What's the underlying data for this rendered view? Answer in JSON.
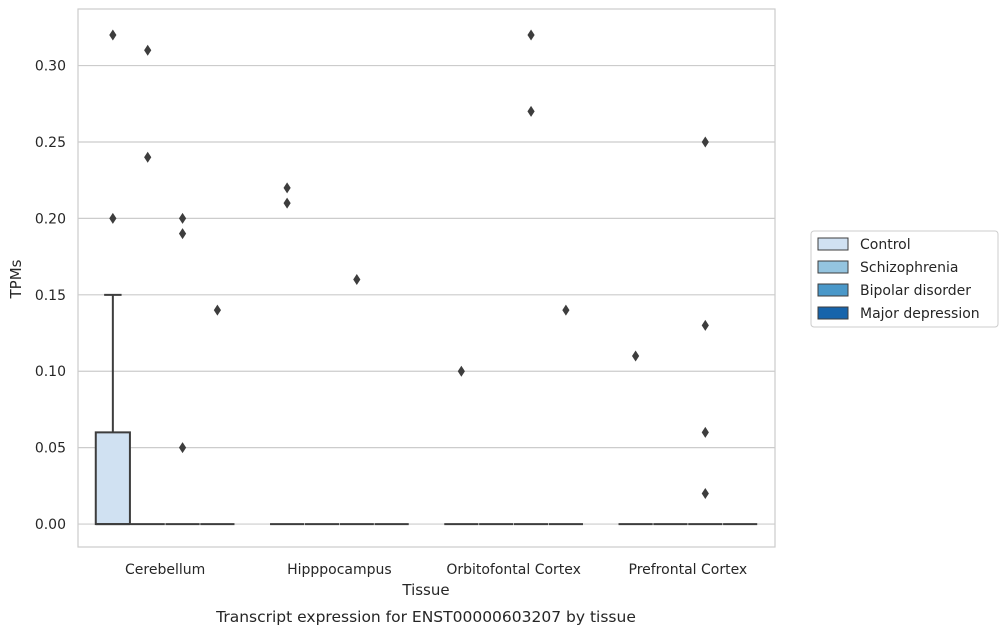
{
  "chart_data": {
    "type": "box",
    "xlabel": "Tissue",
    "ylabel": "TPMs",
    "caption": "Transcript expression for ENST00000603207 by tissue",
    "ylim": [
      -0.015,
      0.337
    ],
    "yticks": [
      0.0,
      0.05,
      0.1,
      0.15,
      0.2,
      0.25,
      0.3
    ],
    "ytick_labels": [
      "0.00",
      "0.05",
      "0.10",
      "0.15",
      "0.20",
      "0.25",
      "0.30"
    ],
    "grid": "horizontal",
    "legend_position": "right",
    "categories": [
      "Cerebellum",
      "Hipppocampus",
      "Orbitofontal Cortex",
      "Prefrontal Cortex"
    ],
    "series": [
      {
        "name": "Control",
        "color": "#d0e1f2",
        "boxes": [
          {
            "q1": 0.0,
            "median": 0.0,
            "q3": 0.06,
            "whisker_low": 0.0,
            "whisker_high": 0.15,
            "outliers": [
              0.2,
              0.32
            ]
          },
          {
            "q1": 0.0,
            "median": 0.0,
            "q3": 0.0,
            "whisker_low": 0.0,
            "whisker_high": 0.0,
            "outliers": [
              0.21,
              0.22
            ]
          },
          {
            "q1": 0.0,
            "median": 0.0,
            "q3": 0.0,
            "whisker_low": 0.0,
            "whisker_high": 0.0,
            "outliers": [
              0.1
            ]
          },
          {
            "q1": 0.0,
            "median": 0.0,
            "q3": 0.0,
            "whisker_low": 0.0,
            "whisker_high": 0.0,
            "outliers": [
              0.11
            ]
          }
        ]
      },
      {
        "name": "Schizophrenia",
        "color": "#94c4df",
        "boxes": [
          {
            "q1": 0.0,
            "median": 0.0,
            "q3": 0.0,
            "whisker_low": 0.0,
            "whisker_high": 0.0,
            "outliers": [
              0.24,
              0.31
            ]
          },
          {
            "q1": 0.0,
            "median": 0.0,
            "q3": 0.0,
            "whisker_low": 0.0,
            "whisker_high": 0.0,
            "outliers": []
          },
          {
            "q1": 0.0,
            "median": 0.0,
            "q3": 0.0,
            "whisker_low": 0.0,
            "whisker_high": 0.0,
            "outliers": []
          },
          {
            "q1": 0.0,
            "median": 0.0,
            "q3": 0.0,
            "whisker_low": 0.0,
            "whisker_high": 0.0,
            "outliers": []
          }
        ]
      },
      {
        "name": "Bipolar disorder",
        "color": "#4a98c9",
        "boxes": [
          {
            "q1": 0.0,
            "median": 0.0,
            "q3": 0.0,
            "whisker_low": 0.0,
            "whisker_high": 0.0,
            "outliers": [
              0.05,
              0.19,
              0.2
            ]
          },
          {
            "q1": 0.0,
            "median": 0.0,
            "q3": 0.0,
            "whisker_low": 0.0,
            "whisker_high": 0.0,
            "outliers": [
              0.16
            ]
          },
          {
            "q1": 0.0,
            "median": 0.0,
            "q3": 0.0,
            "whisker_low": 0.0,
            "whisker_high": 0.0,
            "outliers": [
              0.27,
              0.32
            ]
          },
          {
            "q1": 0.0,
            "median": 0.0,
            "q3": 0.0,
            "whisker_low": 0.0,
            "whisker_high": 0.0,
            "outliers": [
              0.06,
              0.13,
              0.25,
              0.02
            ]
          }
        ]
      },
      {
        "name": "Major depression",
        "color": "#1764ab",
        "boxes": [
          {
            "q1": 0.0,
            "median": 0.0,
            "q3": 0.0,
            "whisker_low": 0.0,
            "whisker_high": 0.0,
            "outliers": [
              0.14
            ]
          },
          {
            "q1": 0.0,
            "median": 0.0,
            "q3": 0.0,
            "whisker_low": 0.0,
            "whisker_high": 0.0,
            "outliers": []
          },
          {
            "q1": 0.0,
            "median": 0.0,
            "q3": 0.0,
            "whisker_low": 0.0,
            "whisker_high": 0.0,
            "outliers": [
              0.14
            ]
          },
          {
            "q1": 0.0,
            "median": 0.0,
            "q3": 0.0,
            "whisker_low": 0.0,
            "whisker_high": 0.0,
            "outliers": []
          }
        ]
      }
    ]
  }
}
